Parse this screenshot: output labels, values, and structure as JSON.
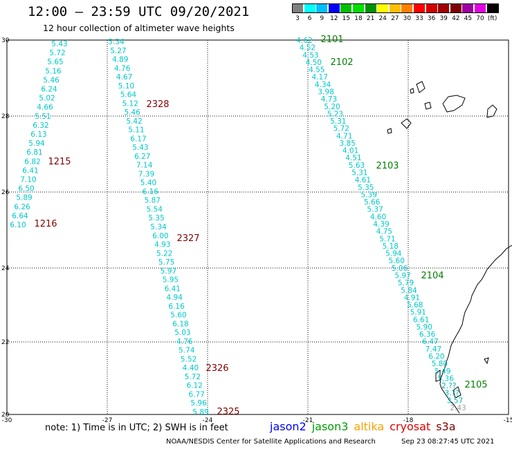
{
  "header": {
    "title": "12:00 – 23:59 UTC 09/20/2021",
    "subtitle": "12 hour collection of altimeter wave heights"
  },
  "colorbar": {
    "colors": [
      "#808080",
      "#00ffff",
      "#00bfff",
      "#0000ff",
      "#00bf00",
      "#00e000",
      "#009000",
      "#ffff00",
      "#ffc000",
      "#ff8000",
      "#ff0000",
      "#d00000",
      "#a00000",
      "#800000",
      "#a000a0",
      "#e000e0",
      "#000000"
    ],
    "labels": [
      "3",
      "6",
      "9",
      "12",
      "15",
      "18",
      "21",
      "24",
      "27",
      "30",
      "33",
      "36",
      "39",
      "42",
      "45",
      "70",
      "(ft)"
    ]
  },
  "map": {
    "lon_ticks": [
      "-30",
      "-27",
      "-24",
      "-21",
      "-18",
      "-15"
    ],
    "lat_ticks": [
      "30",
      "28",
      "26",
      "24",
      "22",
      "20"
    ],
    "tracks": [
      {
        "color": "#00c8c8",
        "labels": [
          "5.43",
          "5.72",
          "5.65",
          "5.16",
          "5.46",
          "6.24",
          "5.02",
          "4.66",
          "5.51",
          "6.32",
          "6.13",
          "5.94",
          "6.81",
          "6.82",
          "6.41",
          "7.10",
          "6.50",
          "5.89",
          "6.26",
          "6.64",
          "6.10"
        ]
      },
      {
        "color": "#00c8c8",
        "labels": [
          "5.34",
          "5.27",
          "4.89",
          "4.76",
          "4.67",
          "5.10",
          "5.64",
          "5.12",
          "5.46",
          "5.42",
          "5.11",
          "6.17",
          "5.43",
          "6.27",
          "7.14",
          "7.39",
          "5.40",
          "6.16",
          "5.87",
          "5.54",
          "5.35",
          "5.34",
          "6.00",
          "4.93",
          "5.22",
          "5.75",
          "5.97",
          "5.95",
          "6.41",
          "4.94",
          "6.16",
          "5.60",
          "6.18",
          "5.03",
          "4.76",
          "5.74",
          "5.52",
          "4.40",
          "5.72",
          "6.12",
          "6.77",
          "5.96",
          "5.89"
        ]
      },
      {
        "color": "#00c8c8",
        "labels": [
          "4.62",
          "4.52",
          "4.53",
          "4.50",
          "4.55",
          "4.17",
          "4.34",
          "3.98",
          "4.73",
          "5.20",
          "5.23",
          "5.31",
          "5.72",
          "4.71",
          "3.85",
          "4.01",
          "4.51",
          "5.63",
          "5.31",
          "4.61",
          "5.35",
          "5.39",
          "5.66",
          "5.37",
          "4.60",
          "4.39",
          "4.75",
          "5.71",
          "5.18",
          "5.94",
          "5.60",
          "5.06",
          "5.97",
          "5.79",
          "5.84",
          "4.91",
          "5.68",
          "5.91",
          "6.61",
          "5.90",
          "6.36",
          "6.47",
          "7.47",
          "6.20",
          "5.80",
          "5.49",
          "5.36",
          "2.??",
          "3.??",
          "3.57",
          "2.43"
        ]
      }
    ],
    "pass_labels": [
      {
        "text": "2101",
        "color": "#008000"
      },
      {
        "text": "2102",
        "color": "#008000"
      },
      {
        "text": "2103",
        "color": "#008000"
      },
      {
        "text": "2104",
        "color": "#008000"
      },
      {
        "text": "2105",
        "color": "#008000"
      },
      {
        "text": "2328",
        "color": "#800000"
      },
      {
        "text": "2327",
        "color": "#800000"
      },
      {
        "text": "2326",
        "color": "#800000"
      },
      {
        "text": "2325",
        "color": "#800000"
      },
      {
        "text": "1215",
        "color": "#800000"
      },
      {
        "text": "1216",
        "color": "#800000"
      }
    ]
  },
  "footer": {
    "note": "note: 1) Time is in UTC; 2) SWH is in feet",
    "satellites": [
      {
        "name": "jason2",
        "color": "#0000ff"
      },
      {
        "name": "jason3",
        "color": "#00a000"
      },
      {
        "name": "altika",
        "color": "#ffa000"
      },
      {
        "name": "cryosat",
        "color": "#e00000"
      },
      {
        "name": "s3a",
        "color": "#800000"
      }
    ],
    "credit": "NOAA/NESDIS Center for Satellite Applications and Research",
    "timestamp": "Sep 23 08:27:45 UTC 2021"
  }
}
